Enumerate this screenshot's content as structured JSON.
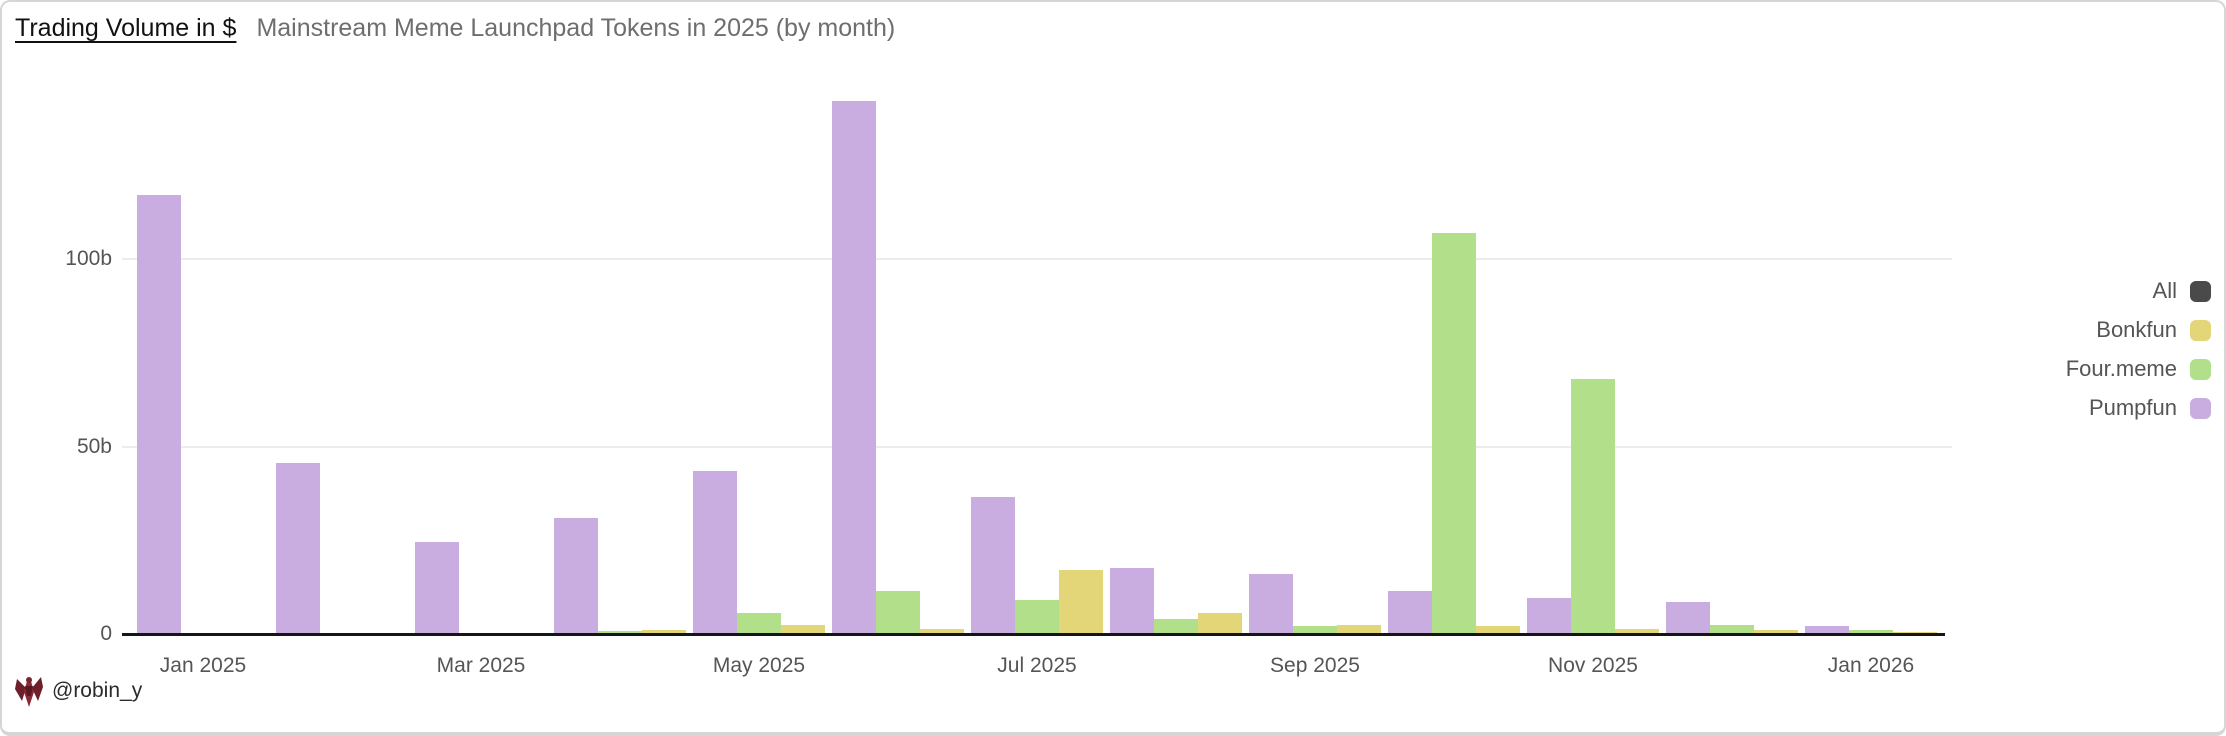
{
  "chart_data": {
    "type": "bar",
    "title": "Trading Volume in $",
    "subtitle": "Mainstream Meme Launchpad Tokens in 2025 (by month)",
    "unit": "billions of USD",
    "categories": [
      "Jan 2025",
      "Feb 2025",
      "Mar 2025",
      "Apr 2025",
      "May 2025",
      "Jun 2025",
      "Jul 2025",
      "Aug 2025",
      "Sep 2025",
      "Oct 2025",
      "Nov 2025",
      "Dec 2025",
      "Jan 2026"
    ],
    "x_tick_indices": [
      0,
      2,
      4,
      6,
      8,
      10,
      12
    ],
    "series": [
      {
        "name": "Pumpfun",
        "color": "#c9ade1",
        "values": [
          117,
          45.5,
          24.5,
          31,
          43.5,
          142,
          36.5,
          17.5,
          16,
          11.5,
          9.5,
          8.5,
          2
        ]
      },
      {
        "name": "Four.meme",
        "color": "#b2df8a",
        "values": [
          0.2,
          0.2,
          0.3,
          0.7,
          5.5,
          11.5,
          9,
          4,
          2,
          107,
          68,
          2.5,
          1
        ]
      },
      {
        "name": "Bonkfun",
        "color": "#e2d678",
        "values": [
          0.1,
          0.1,
          0.3,
          1,
          2.5,
          1.2,
          17,
          5.5,
          2.5,
          2,
          1.2,
          1,
          0.5
        ]
      }
    ],
    "yticks": [
      {
        "value": 0,
        "label": "0"
      },
      {
        "value": 50,
        "label": "50b"
      },
      {
        "value": 100,
        "label": "100b"
      }
    ],
    "ylim": [
      0,
      151
    ],
    "grid": "horizontal",
    "legend_position": "right",
    "legend_items": [
      {
        "label": "All",
        "color": "#4a4a4a"
      },
      {
        "label": "Bonkfun",
        "color": "#e2d678"
      },
      {
        "label": "Four.meme",
        "color": "#b2df8a"
      },
      {
        "label": "Pumpfun",
        "color": "#c9ade1"
      }
    ]
  },
  "footer": {
    "handle": "@robin_y",
    "logo_icon": "winged-mech-logo",
    "logo_color": "#7a2330"
  }
}
